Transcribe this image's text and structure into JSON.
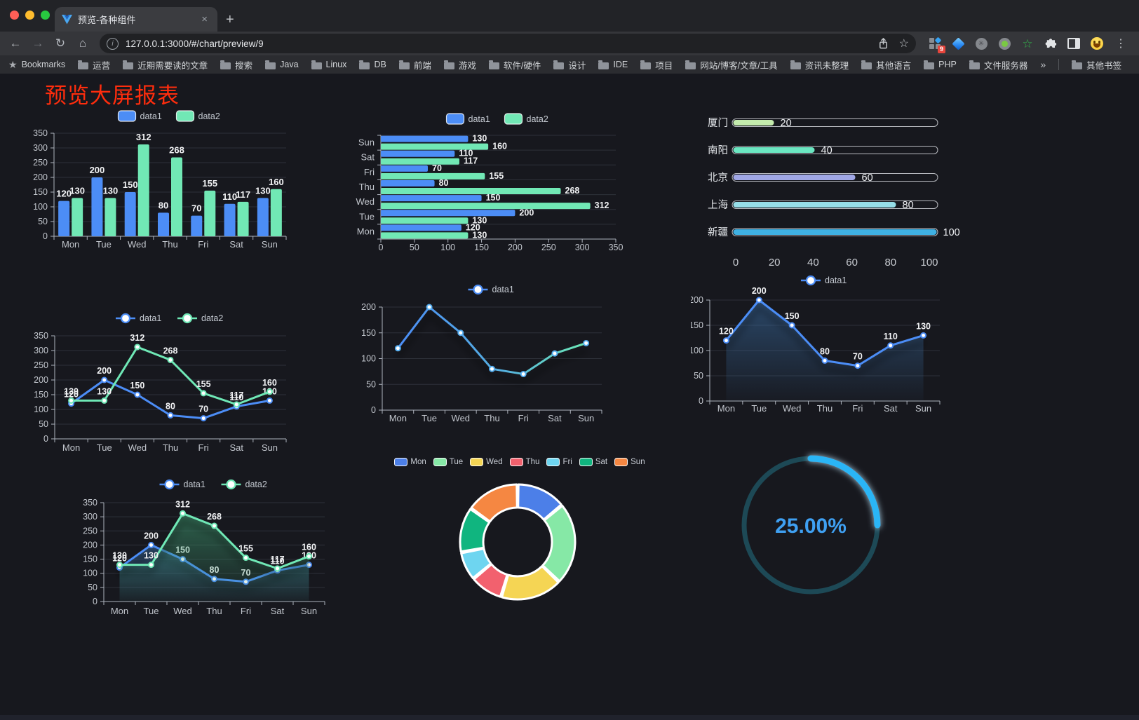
{
  "browser": {
    "traffic_lights": [
      "#ff5f57",
      "#febc2e",
      "#28c840"
    ],
    "tab": {
      "title": "预览-各种组件",
      "close_icon": "×"
    },
    "new_tab_icon": "+",
    "nav": {
      "back_icon": "←",
      "forward_icon": "→",
      "reload_icon": "↻",
      "home_icon": "⌂"
    },
    "address": {
      "info_icon": "i",
      "url": "127.0.0.1:3000/#/chart/preview/9",
      "share_icon": "box-with-up-arrow",
      "bookmark_star_icon": "☆"
    },
    "extensions": {
      "badge": "9",
      "menu_icon": "⋮"
    },
    "bookmarks": {
      "star_icon": "★",
      "label": "Bookmarks",
      "folders": [
        "运营",
        "近期需要读的文章",
        "搜索",
        "Java",
        "Linux",
        "DB",
        "前端",
        "游戏",
        "软件/硬件",
        "设计",
        "IDE",
        "项目",
        "网站/博客/文章/工具",
        "资讯未整理",
        "其他语言",
        "PHP",
        "文件服务器"
      ],
      "overflow_icon": "»",
      "other_label": "其他书签"
    }
  },
  "page": {
    "title": "预览大屏报表",
    "title_color": "#ff2d0d",
    "background": "#17181e"
  },
  "chart_data": [
    {
      "id": "bar-grouped",
      "type": "bar",
      "legend": true,
      "value_labels": true,
      "categories": [
        "Mon",
        "Tue",
        "Wed",
        "Thu",
        "Fri",
        "Sat",
        "Sun"
      ],
      "series": [
        {
          "name": "data1",
          "color": "#4C8DF6",
          "values": [
            120,
            200,
            150,
            80,
            70,
            110,
            130
          ]
        },
        {
          "name": "data2",
          "color": "#71E8B5",
          "values": [
            130,
            130,
            312,
            268,
            155,
            117,
            160
          ]
        }
      ],
      "ylim": [
        0,
        350
      ],
      "ytick_step": 50
    },
    {
      "id": "bar-horizontal",
      "type": "bar-h",
      "legend": true,
      "value_labels": true,
      "categories": [
        "Mon",
        "Tue",
        "Wed",
        "Thu",
        "Fri",
        "Sat",
        "Sun"
      ],
      "series": [
        {
          "name": "data1",
          "color": "#4C8DF6",
          "values": [
            120,
            200,
            150,
            80,
            70,
            110,
            130
          ]
        },
        {
          "name": "data2",
          "color": "#71E8B5",
          "values": [
            130,
            130,
            312,
            268,
            155,
            117,
            160
          ]
        }
      ],
      "xlim": [
        0,
        350
      ],
      "xtick_step": 50
    },
    {
      "id": "progress",
      "type": "progress",
      "max": 100,
      "xticks": [
        0,
        20,
        40,
        60,
        80,
        100
      ],
      "rows": [
        {
          "label": "厦门",
          "value": 20,
          "color": "#C4EBAD"
        },
        {
          "label": "南阳",
          "value": 40,
          "color": "#6BE6C1"
        },
        {
          "label": "北京",
          "value": 60,
          "color": "#A0A7E6"
        },
        {
          "label": "上海",
          "value": 80,
          "color": "#96DEE8"
        },
        {
          "label": "新疆",
          "value": 100,
          "color": "#3FB1E3"
        }
      ]
    },
    {
      "id": "line-grouped",
      "type": "line",
      "legend": true,
      "value_labels": true,
      "categories": [
        "Mon",
        "Tue",
        "Wed",
        "Thu",
        "Fri",
        "Sat",
        "Sun"
      ],
      "series": [
        {
          "name": "data1",
          "color": "#4C8DF6",
          "values": [
            120,
            200,
            150,
            80,
            70,
            110,
            130
          ]
        },
        {
          "name": "data2",
          "color": "#6FE8B6",
          "values": [
            130,
            130,
            312,
            268,
            155,
            117,
            160
          ]
        }
      ],
      "ylim": [
        0,
        350
      ],
      "ytick_step": 50
    },
    {
      "id": "line-gradient",
      "type": "line",
      "legend": true,
      "value_labels": false,
      "shadow": true,
      "categories": [
        "Mon",
        "Tue",
        "Wed",
        "Thu",
        "Fri",
        "Sat",
        "Sun"
      ],
      "series": [
        {
          "name": "data1",
          "colors": [
            "#4C8DF6",
            "#6CE8B5"
          ],
          "values": [
            120,
            200,
            150,
            80,
            70,
            110,
            130
          ]
        }
      ],
      "ylim": [
        0,
        200
      ],
      "ytick_step": 50
    },
    {
      "id": "area-single",
      "type": "area",
      "legend": true,
      "value_labels": true,
      "shadow": true,
      "categories": [
        "Mon",
        "Tue",
        "Wed",
        "Thu",
        "Fri",
        "Sat",
        "Sun"
      ],
      "series": [
        {
          "name": "data1",
          "color": "#4C8DF6",
          "area": "#3a6ea5",
          "values": [
            120,
            200,
            150,
            80,
            70,
            110,
            130
          ]
        }
      ],
      "ylim": [
        0,
        200
      ],
      "ytick_step": 50
    },
    {
      "id": "area-grouped",
      "type": "area",
      "legend": true,
      "value_labels": true,
      "shadow": true,
      "categories": [
        "Mon",
        "Tue",
        "Wed",
        "Thu",
        "Fri",
        "Sat",
        "Sun"
      ],
      "series": [
        {
          "name": "data1",
          "color": "#4C8DF6",
          "area": "#3a6ea5",
          "values": [
            120,
            200,
            150,
            80,
            70,
            110,
            130
          ]
        },
        {
          "name": "data2",
          "color": "#6FE8B6",
          "area": "#3f9f72",
          "values": [
            130,
            130,
            312,
            268,
            155,
            117,
            160
          ]
        }
      ],
      "ylim": [
        0,
        350
      ],
      "ytick_step": 50
    },
    {
      "id": "donut",
      "type": "pie",
      "items": [
        {
          "label": "Mon",
          "value": 120,
          "color": "#4C7FE8"
        },
        {
          "label": "Tue",
          "value": 200,
          "color": "#86E8A6"
        },
        {
          "label": "Wed",
          "value": 150,
          "color": "#F5D554"
        },
        {
          "label": "Thu",
          "value": 80,
          "color": "#F2616E"
        },
        {
          "label": "Fri",
          "value": 70,
          "color": "#6ED5F0"
        },
        {
          "label": "Sat",
          "value": 110,
          "color": "#10B57F"
        },
        {
          "label": "Sun",
          "value": 130,
          "color": "#F58742"
        }
      ]
    },
    {
      "id": "gauge",
      "type": "gauge",
      "value": 25,
      "display": "25.00%",
      "color": "#2CB5F6",
      "track_color": "#1D4956",
      "text_color": "#3FA0F2"
    }
  ]
}
